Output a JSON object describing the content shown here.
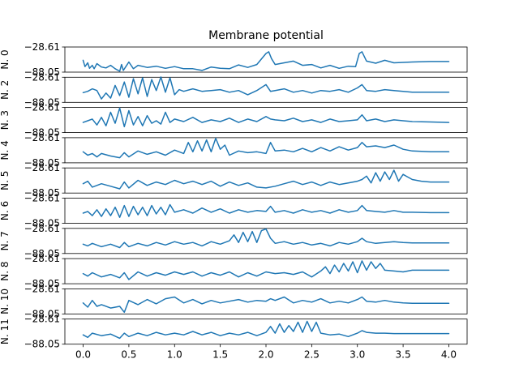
{
  "chart_data": {
    "type": "line",
    "title": "Membrane potential",
    "x_ticks": [
      "0.0",
      "0.5",
      "1.0",
      "1.5",
      "2.0",
      "2.5",
      "3.0",
      "3.5",
      "4.0"
    ],
    "xlim": [
      -0.2,
      4.2
    ],
    "ylim": [
      -88.05,
      -28.61
    ],
    "y_tick_labels": [
      "-28.61",
      "-88.05"
    ],
    "color": "#1f77b4",
    "grid": false,
    "panels": [
      {
        "label": "N. 0",
        "x": [
          0,
          0.02,
          0.05,
          0.07,
          0.1,
          0.12,
          0.15,
          0.2,
          0.25,
          0.3,
          0.35,
          0.4,
          0.42,
          0.44,
          0.47,
          0.5,
          0.55,
          0.6,
          0.7,
          0.8,
          0.9,
          1.0,
          1.1,
          1.2,
          1.3,
          1.4,
          1.5,
          1.6,
          1.7,
          1.8,
          1.9,
          2.0,
          2.03,
          2.06,
          2.1,
          2.2,
          2.3,
          2.4,
          2.5,
          2.6,
          2.7,
          2.8,
          2.9,
          2.98,
          3.02,
          3.05,
          3.1,
          3.2,
          3.3,
          3.4,
          3.5,
          3.6,
          3.8,
          4.0
        ],
        "y": [
          -60,
          -75,
          -66,
          -79,
          -72,
          -80,
          -68,
          -76,
          -78,
          -72,
          -80,
          -86,
          -70,
          -84,
          -74,
          -64,
          -80,
          -72,
          -77,
          -74,
          -79,
          -75,
          -80,
          -80,
          -84,
          -76,
          -79,
          -80,
          -71,
          -77,
          -70,
          -44,
          -40,
          -56,
          -70,
          -66,
          -62,
          -72,
          -70,
          -78,
          -72,
          -79,
          -74,
          -75,
          -44,
          -40,
          -62,
          -67,
          -60,
          -66,
          -65,
          -64,
          -63,
          -63
        ]
      },
      {
        "label": "N. 2",
        "x": [
          0,
          0.05,
          0.1,
          0.15,
          0.2,
          0.25,
          0.3,
          0.35,
          0.4,
          0.45,
          0.5,
          0.55,
          0.6,
          0.65,
          0.7,
          0.75,
          0.8,
          0.85,
          0.9,
          0.95,
          1.0,
          1.05,
          1.1,
          1.2,
          1.3,
          1.4,
          1.5,
          1.6,
          1.7,
          1.8,
          1.9,
          2.0,
          2.05,
          2.1,
          2.2,
          2.3,
          2.4,
          2.5,
          2.6,
          2.7,
          2.8,
          2.9,
          3.0,
          3.05,
          3.1,
          3.2,
          3.3,
          3.4,
          3.5,
          3.6,
          3.8,
          4.0
        ],
        "y": [
          -65,
          -62,
          -56,
          -60,
          -80,
          -66,
          -78,
          -48,
          -72,
          -40,
          -76,
          -32,
          -68,
          -30,
          -74,
          -34,
          -60,
          -28,
          -64,
          -30,
          -70,
          -58,
          -62,
          -56,
          -62,
          -60,
          -58,
          -64,
          -60,
          -70,
          -60,
          -46,
          -62,
          -60,
          -56,
          -64,
          -60,
          -66,
          -60,
          -62,
          -58,
          -64,
          -54,
          -46,
          -60,
          -62,
          -58,
          -60,
          -62,
          -64,
          -64,
          -64
        ]
      },
      {
        "label": "N. 3",
        "x": [
          0,
          0.05,
          0.1,
          0.15,
          0.2,
          0.25,
          0.3,
          0.35,
          0.4,
          0.45,
          0.5,
          0.55,
          0.6,
          0.65,
          0.7,
          0.75,
          0.8,
          0.85,
          0.9,
          0.95,
          1.0,
          1.1,
          1.2,
          1.3,
          1.4,
          1.5,
          1.6,
          1.7,
          1.8,
          1.9,
          2.0,
          2.05,
          2.1,
          2.2,
          2.3,
          2.4,
          2.5,
          2.6,
          2.7,
          2.8,
          2.9,
          3.0,
          3.05,
          3.1,
          3.2,
          3.3,
          3.4,
          3.5,
          3.6,
          3.8,
          4.0
        ],
        "y": [
          -64,
          -60,
          -56,
          -70,
          -52,
          -72,
          -40,
          -66,
          -30,
          -74,
          -36,
          -70,
          -50,
          -72,
          -48,
          -66,
          -60,
          -68,
          -40,
          -64,
          -56,
          -62,
          -52,
          -64,
          -58,
          -62,
          -54,
          -64,
          -56,
          -62,
          -50,
          -56,
          -58,
          -60,
          -54,
          -62,
          -58,
          -64,
          -56,
          -62,
          -60,
          -58,
          -46,
          -60,
          -56,
          -62,
          -58,
          -60,
          -62,
          -63,
          -64
        ]
      },
      {
        "label": "N. 4",
        "x": [
          0,
          0.05,
          0.1,
          0.15,
          0.2,
          0.3,
          0.4,
          0.45,
          0.5,
          0.6,
          0.7,
          0.8,
          0.9,
          1.0,
          1.1,
          1.15,
          1.2,
          1.25,
          1.3,
          1.35,
          1.4,
          1.45,
          1.5,
          1.55,
          1.6,
          1.7,
          1.8,
          1.9,
          2.0,
          2.05,
          2.1,
          2.2,
          2.3,
          2.4,
          2.5,
          2.6,
          2.7,
          2.8,
          2.9,
          3.0,
          3.05,
          3.1,
          3.2,
          3.3,
          3.4,
          3.5,
          3.6,
          3.8,
          4.0
        ],
        "y": [
          -62,
          -70,
          -66,
          -74,
          -66,
          -72,
          -76,
          -64,
          -74,
          -60,
          -68,
          -62,
          -70,
          -58,
          -66,
          -40,
          -62,
          -36,
          -60,
          -34,
          -62,
          -30,
          -56,
          -46,
          -70,
          -60,
          -64,
          -62,
          -66,
          -40,
          -60,
          -58,
          -62,
          -54,
          -62,
          -52,
          -60,
          -50,
          -58,
          -52,
          -40,
          -50,
          -48,
          -52,
          -46,
          -56,
          -60,
          -62,
          -62
        ]
      },
      {
        "label": "N. 5",
        "x": [
          0,
          0.05,
          0.1,
          0.2,
          0.3,
          0.4,
          0.45,
          0.5,
          0.6,
          0.7,
          0.8,
          0.9,
          1.0,
          1.1,
          1.2,
          1.3,
          1.4,
          1.5,
          1.6,
          1.7,
          1.8,
          1.9,
          2.0,
          2.1,
          2.2,
          2.3,
          2.4,
          2.5,
          2.6,
          2.7,
          2.8,
          2.9,
          3.0,
          3.05,
          3.1,
          3.15,
          3.2,
          3.25,
          3.3,
          3.35,
          3.4,
          3.45,
          3.5,
          3.55,
          3.6,
          3.7,
          3.8,
          4.0
        ],
        "y": [
          -66,
          -60,
          -74,
          -66,
          -72,
          -78,
          -62,
          -76,
          -58,
          -70,
          -62,
          -68,
          -58,
          -66,
          -60,
          -68,
          -60,
          -72,
          -62,
          -70,
          -64,
          -74,
          -76,
          -72,
          -66,
          -60,
          -68,
          -62,
          -70,
          -62,
          -68,
          -64,
          -60,
          -56,
          -48,
          -64,
          -40,
          -60,
          -38,
          -56,
          -34,
          -60,
          -44,
          -50,
          -56,
          -60,
          -62,
          -62
        ]
      },
      {
        "label": "N. 6",
        "x": [
          0,
          0.05,
          0.1,
          0.15,
          0.2,
          0.25,
          0.3,
          0.35,
          0.4,
          0.45,
          0.5,
          0.55,
          0.6,
          0.65,
          0.7,
          0.75,
          0.8,
          0.85,
          0.9,
          0.95,
          1.0,
          1.1,
          1.2,
          1.3,
          1.4,
          1.5,
          1.6,
          1.7,
          1.8,
          1.9,
          2.0,
          2.05,
          2.1,
          2.2,
          2.3,
          2.4,
          2.5,
          2.6,
          2.7,
          2.8,
          2.9,
          3.0,
          3.05,
          3.1,
          3.2,
          3.3,
          3.4,
          3.5,
          3.6,
          3.8,
          4.0
        ],
        "y": [
          -64,
          -60,
          -70,
          -56,
          -72,
          -54,
          -70,
          -50,
          -74,
          -46,
          -72,
          -48,
          -68,
          -50,
          -70,
          -46,
          -66,
          -50,
          -68,
          -44,
          -62,
          -56,
          -64,
          -52,
          -62,
          -54,
          -64,
          -56,
          -62,
          -58,
          -60,
          -48,
          -62,
          -58,
          -64,
          -56,
          -62,
          -58,
          -64,
          -56,
          -62,
          -58,
          -46,
          -58,
          -60,
          -62,
          -58,
          -62,
          -62,
          -63,
          -63
        ]
      },
      {
        "label": "N. 7",
        "x": [
          0,
          0.05,
          0.1,
          0.2,
          0.3,
          0.4,
          0.45,
          0.5,
          0.6,
          0.7,
          0.8,
          0.9,
          1.0,
          1.1,
          1.2,
          1.3,
          1.4,
          1.5,
          1.6,
          1.65,
          1.7,
          1.75,
          1.8,
          1.85,
          1.9,
          1.95,
          2.0,
          2.05,
          2.1,
          2.2,
          2.3,
          2.4,
          2.5,
          2.6,
          2.7,
          2.8,
          2.9,
          3.0,
          3.05,
          3.1,
          3.2,
          3.3,
          3.4,
          3.5,
          3.6,
          3.8,
          4.0
        ],
        "y": [
          -66,
          -70,
          -64,
          -72,
          -66,
          -74,
          -62,
          -72,
          -64,
          -70,
          -62,
          -68,
          -60,
          -66,
          -62,
          -70,
          -60,
          -66,
          -58,
          -44,
          -62,
          -38,
          -60,
          -36,
          -62,
          -34,
          -30,
          -52,
          -64,
          -60,
          -66,
          -62,
          -68,
          -64,
          -70,
          -62,
          -66,
          -60,
          -52,
          -60,
          -64,
          -62,
          -60,
          -62,
          -63,
          -63,
          -63
        ]
      },
      {
        "label": "N. 8",
        "x": [
          0,
          0.05,
          0.1,
          0.2,
          0.3,
          0.4,
          0.45,
          0.5,
          0.6,
          0.7,
          0.8,
          0.9,
          1.0,
          1.1,
          1.2,
          1.3,
          1.4,
          1.5,
          1.6,
          1.7,
          1.8,
          1.9,
          2.0,
          2.1,
          2.2,
          2.3,
          2.4,
          2.5,
          2.6,
          2.65,
          2.7,
          2.75,
          2.8,
          2.85,
          2.9,
          2.95,
          3.0,
          3.05,
          3.1,
          3.15,
          3.2,
          3.25,
          3.3,
          3.4,
          3.5,
          3.6,
          3.8,
          4.0
        ],
        "y": [
          -64,
          -70,
          -62,
          -72,
          -66,
          -74,
          -62,
          -78,
          -60,
          -70,
          -62,
          -68,
          -60,
          -66,
          -60,
          -70,
          -62,
          -68,
          -60,
          -72,
          -62,
          -70,
          -60,
          -64,
          -62,
          -66,
          -60,
          -72,
          -58,
          -48,
          -64,
          -44,
          -60,
          -40,
          -58,
          -36,
          -62,
          -34,
          -56,
          -36,
          -52,
          -40,
          -56,
          -58,
          -60,
          -56,
          -56,
          -56
        ]
      },
      {
        "label": "N. 10",
        "x": [
          0,
          0.05,
          0.1,
          0.15,
          0.2,
          0.3,
          0.4,
          0.45,
          0.5,
          0.6,
          0.7,
          0.8,
          0.9,
          1.0,
          1.1,
          1.2,
          1.3,
          1.4,
          1.5,
          1.6,
          1.7,
          1.8,
          1.9,
          2.0,
          2.05,
          2.1,
          2.2,
          2.3,
          2.4,
          2.5,
          2.6,
          2.7,
          2.8,
          2.9,
          3.0,
          3.05,
          3.1,
          3.2,
          3.3,
          3.4,
          3.5,
          3.6,
          3.8,
          4.0
        ],
        "y": [
          -62,
          -72,
          -56,
          -70,
          -66,
          -74,
          -70,
          -84,
          -56,
          -66,
          -54,
          -64,
          -52,
          -48,
          -62,
          -54,
          -64,
          -56,
          -62,
          -58,
          -54,
          -60,
          -56,
          -58,
          -52,
          -56,
          -48,
          -62,
          -56,
          -60,
          -52,
          -62,
          -58,
          -62,
          -54,
          -48,
          -58,
          -60,
          -56,
          -60,
          -62,
          -63,
          -63,
          -63
        ]
      },
      {
        "label": "N. 11",
        "x": [
          0,
          0.05,
          0.1,
          0.2,
          0.3,
          0.4,
          0.45,
          0.5,
          0.6,
          0.7,
          0.8,
          0.9,
          1.0,
          1.1,
          1.2,
          1.3,
          1.4,
          1.5,
          1.6,
          1.7,
          1.8,
          1.9,
          2.0,
          2.05,
          2.1,
          2.15,
          2.2,
          2.25,
          2.3,
          2.35,
          2.4,
          2.45,
          2.5,
          2.55,
          2.6,
          2.7,
          2.8,
          2.9,
          3.0,
          3.05,
          3.1,
          3.2,
          3.3,
          3.4,
          3.5,
          3.6,
          3.8,
          4.0
        ],
        "y": [
          -66,
          -72,
          -62,
          -68,
          -64,
          -74,
          -62,
          -70,
          -62,
          -68,
          -60,
          -66,
          -62,
          -66,
          -58,
          -66,
          -60,
          -68,
          -62,
          -66,
          -60,
          -68,
          -60,
          -46,
          -62,
          -40,
          -60,
          -44,
          -58,
          -36,
          -60,
          -34,
          -58,
          -36,
          -62,
          -66,
          -64,
          -70,
          -62,
          -56,
          -60,
          -62,
          -62,
          -63,
          -63,
          -63,
          -63,
          -63
        ]
      }
    ]
  }
}
